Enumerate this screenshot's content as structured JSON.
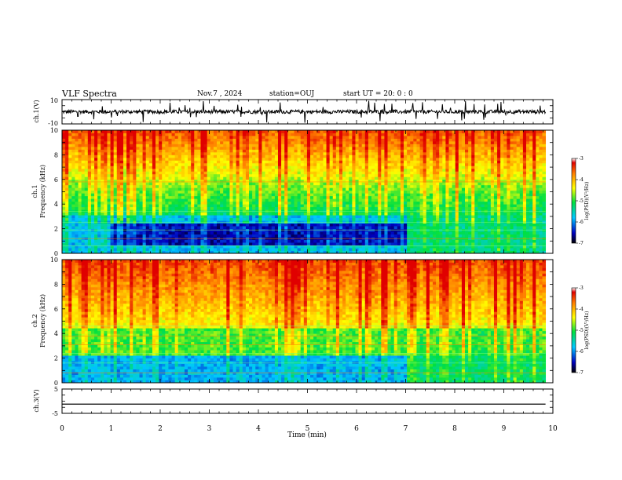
{
  "header": {
    "title": "VLF Spectra",
    "date": "Nov.7 , 2024",
    "station": "station=OUJ",
    "start": "start UT = 20: 0 : 0"
  },
  "chart_data": [
    {
      "type": "line",
      "panel": "ch1-waveform",
      "ylabel": "ch.1(V)",
      "ylim": [
        -10,
        10
      ],
      "yticks": [
        "10",
        "-10"
      ],
      "xlim": [
        0,
        10
      ],
      "description_values": {
        "baseline": 0,
        "noise_amplitude": 1.5
      }
    },
    {
      "type": "heatmap",
      "panel": "ch1-spectrogram",
      "ylabel": "ch.1 Frequency (kHz)",
      "ylim": [
        0,
        10
      ],
      "yticks": [
        "0",
        "2",
        "4",
        "6",
        "8",
        "10"
      ],
      "xlim": [
        0,
        10
      ],
      "data_end_min": 9.85,
      "colorbar": {
        "label": "log(PSD)(V²/Hz)",
        "range": [
          -7,
          -3
        ],
        "ticks": [
          "-3",
          "-4",
          "-5",
          "-6",
          "-7"
        ]
      }
    },
    {
      "type": "heatmap",
      "panel": "ch2-spectrogram",
      "ylabel": "ch.2 Frequency (kHz)",
      "ylim": [
        0,
        10
      ],
      "yticks": [
        "0",
        "2",
        "4",
        "6",
        "8",
        "10"
      ],
      "xlim": [
        0,
        10
      ],
      "data_end_min": 9.85,
      "colorbar": {
        "label": "log(PSD)(V²/Hz)",
        "range": [
          -7,
          -3
        ],
        "ticks": [
          "-3",
          "-4",
          "-5",
          "-6",
          "-7"
        ]
      }
    },
    {
      "type": "line",
      "panel": "ch3-waveform",
      "ylabel": "ch.3(V)",
      "ylim": [
        -5,
        5
      ],
      "yticks": [
        "5",
        "-5"
      ],
      "xlim": [
        0,
        10
      ],
      "x": [
        0,
        9.85
      ],
      "y": [
        -1.2,
        -1.2
      ]
    }
  ],
  "xaxis": {
    "label": "Time (min)",
    "ticks": [
      "0",
      "1",
      "2",
      "3",
      "4",
      "5",
      "6",
      "7",
      "8",
      "9",
      "10"
    ]
  },
  "colors": {
    "cold": "#0000b0",
    "cool": "#00c8ff",
    "mid": "#00e040",
    "warm": "#ffff00",
    "hot": "#ff8000",
    "max": "#e00000"
  }
}
